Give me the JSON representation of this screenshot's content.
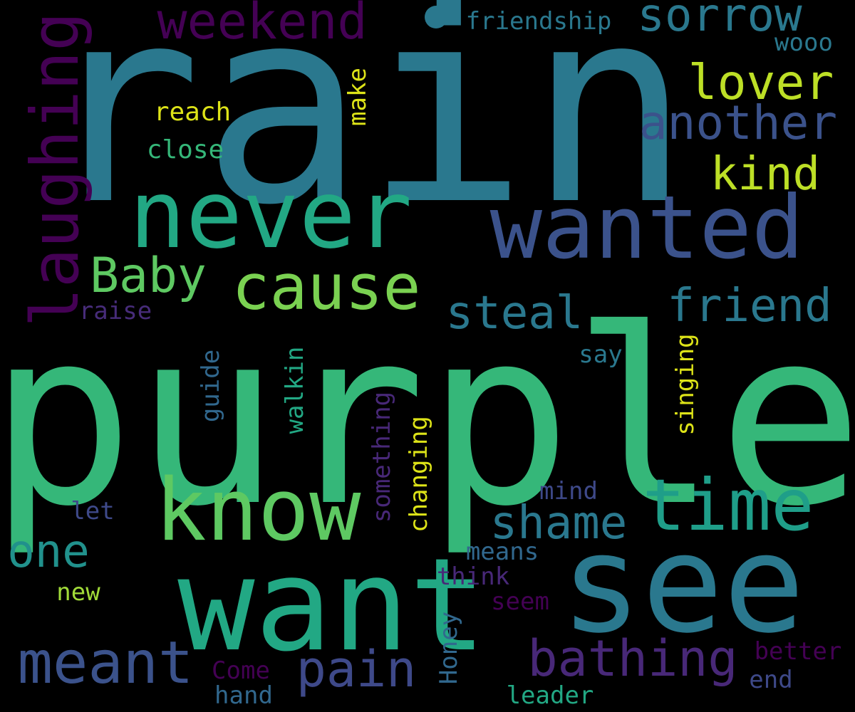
{
  "words": [
    {
      "text": "rain",
      "color": "#2a788e"
    },
    {
      "text": "purple",
      "color": "#35b779"
    },
    {
      "text": "want",
      "color": "#22a884"
    },
    {
      "text": "see",
      "color": "#2a788e"
    },
    {
      "text": "never",
      "color": "#22a884"
    },
    {
      "text": "wanted",
      "color": "#3b528b"
    },
    {
      "text": "know",
      "color": "#5ec962"
    },
    {
      "text": "cause",
      "color": "#7ad151"
    },
    {
      "text": "time",
      "color": "#1f9e89"
    },
    {
      "text": "laughing",
      "color": "#440154"
    },
    {
      "text": "meant",
      "color": "#3b528b"
    },
    {
      "text": "weekend",
      "color": "#440154"
    },
    {
      "text": "sorrow",
      "color": "#2a788e"
    },
    {
      "text": "lover",
      "color": "#bddf26"
    },
    {
      "text": "another",
      "color": "#3b528b"
    },
    {
      "text": "kind",
      "color": "#bddf26"
    },
    {
      "text": "Baby",
      "color": "#5ec962"
    },
    {
      "text": "friend",
      "color": "#2a788e"
    },
    {
      "text": "steal",
      "color": "#2a788e"
    },
    {
      "text": "shame",
      "color": "#2a788e"
    },
    {
      "text": "one",
      "color": "#21918c"
    },
    {
      "text": "pain",
      "color": "#3e4989"
    },
    {
      "text": "bathing",
      "color": "#482878"
    },
    {
      "text": "friendship",
      "color": "#2a788e"
    },
    {
      "text": "wooo",
      "color": "#2a788e"
    },
    {
      "text": "reach",
      "color": "#dde318"
    },
    {
      "text": "close",
      "color": "#35b779"
    },
    {
      "text": "make",
      "color": "#dde318"
    },
    {
      "text": "raise",
      "color": "#472c7a"
    },
    {
      "text": "say",
      "color": "#2a788e"
    },
    {
      "text": "singing",
      "color": "#dde318"
    },
    {
      "text": "guide",
      "color": "#31688e"
    },
    {
      "text": "walkin",
      "color": "#22a884"
    },
    {
      "text": "something",
      "color": "#482878"
    },
    {
      "text": "changing",
      "color": "#dde318"
    },
    {
      "text": "mind",
      "color": "#3e4989"
    },
    {
      "text": "let",
      "color": "#3e4989"
    },
    {
      "text": "means",
      "color": "#31688e"
    },
    {
      "text": "think",
      "color": "#482878"
    },
    {
      "text": "seem",
      "color": "#440154"
    },
    {
      "text": "new",
      "color": "#a0da39"
    },
    {
      "text": "Honey",
      "color": "#31688e"
    },
    {
      "text": "Come",
      "color": "#440154"
    },
    {
      "text": "hand",
      "color": "#31688e"
    },
    {
      "text": "leader",
      "color": "#22a884"
    },
    {
      "text": "better",
      "color": "#440154"
    },
    {
      "text": "end",
      "color": "#3e4989"
    }
  ]
}
